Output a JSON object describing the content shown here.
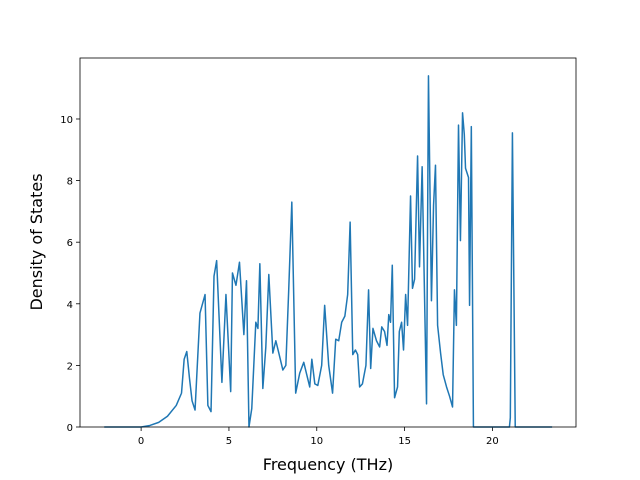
{
  "chart_data": {
    "type": "line",
    "x_label": "Frequency (THz)",
    "y_label": "Density of States",
    "color": "#1f77b4",
    "x": [
      -2.1,
      -1,
      0,
      0.5,
      1,
      1.5,
      2.0,
      2.3,
      2.45,
      2.6,
      2.75,
      2.9,
      3.07,
      3.35,
      3.64,
      3.8,
      3.98,
      4.15,
      4.3,
      4.6,
      4.83,
      5.1,
      5.2,
      5.4,
      5.6,
      5.85,
      6.0,
      6.14,
      6.3,
      6.53,
      6.65,
      6.76,
      6.93,
      7.1,
      7.27,
      7.5,
      7.67,
      7.84,
      8.07,
      8.24,
      8.4,
      8.58,
      8.8,
      9.03,
      9.26,
      9.43,
      9.6,
      9.72,
      9.89,
      10.06,
      10.28,
      10.45,
      10.68,
      10.9,
      11.08,
      11.25,
      11.42,
      11.6,
      11.76,
      11.9,
      12.05,
      12.2,
      12.33,
      12.44,
      12.6,
      12.8,
      12.95,
      13.07,
      13.2,
      13.4,
      13.58,
      13.7,
      13.86,
      14.0,
      14.1,
      14.2,
      14.3,
      14.43,
      14.6,
      14.7,
      14.83,
      14.94,
      15.06,
      15.17,
      15.34,
      15.45,
      15.57,
      15.74,
      15.85,
      16.0,
      16.25,
      16.36,
      16.53,
      16.65,
      16.76,
      16.88,
      17.05,
      17.2,
      17.39,
      17.56,
      17.73,
      17.84,
      17.95,
      18.07,
      18.18,
      18.3,
      18.4,
      18.47,
      18.64,
      18.7,
      18.8,
      18.92,
      20.97,
      21.02,
      21.14,
      21.3,
      23.4
    ],
    "values": [
      0,
      0,
      0,
      0.05,
      0.15,
      0.35,
      0.7,
      1.1,
      2.2,
      2.45,
      1.6,
      0.85,
      0.55,
      3.7,
      4.3,
      0.7,
      0.5,
      4.9,
      5.4,
      1.45,
      4.3,
      1.15,
      5.0,
      4.6,
      5.35,
      3.0,
      4.75,
      0.0,
      0.6,
      3.4,
      3.2,
      5.3,
      1.25,
      2.6,
      4.95,
      2.4,
      2.8,
      2.4,
      1.85,
      2.0,
      4.4,
      7.3,
      1.1,
      1.75,
      2.1,
      1.7,
      1.3,
      2.2,
      1.4,
      1.35,
      2.0,
      3.95,
      2.0,
      1.1,
      2.85,
      2.8,
      3.4,
      3.6,
      4.3,
      6.65,
      2.35,
      2.5,
      2.35,
      1.3,
      1.4,
      2.0,
      4.45,
      1.9,
      3.2,
      2.8,
      2.6,
      3.25,
      3.1,
      2.65,
      3.65,
      3.4,
      5.25,
      0.95,
      1.3,
      3.1,
      3.4,
      2.5,
      4.3,
      3.3,
      7.5,
      4.5,
      4.8,
      8.8,
      5.2,
      8.45,
      0.75,
      11.4,
      4.1,
      7.2,
      8.5,
      3.3,
      2.4,
      1.7,
      1.3,
      1.0,
      0.65,
      4.45,
      3.3,
      9.8,
      6.05,
      10.2,
      9.5,
      8.4,
      8.1,
      3.95,
      9.75,
      0,
      0,
      0.3,
      9.55,
      0,
      0
    ],
    "xlim": [
      -3.48,
      24.76
    ],
    "ylim": [
      0,
      11.98
    ],
    "xticks": [
      0,
      5,
      10,
      15,
      20
    ],
    "yticks": [
      0,
      2,
      4,
      6,
      8,
      10
    ]
  }
}
